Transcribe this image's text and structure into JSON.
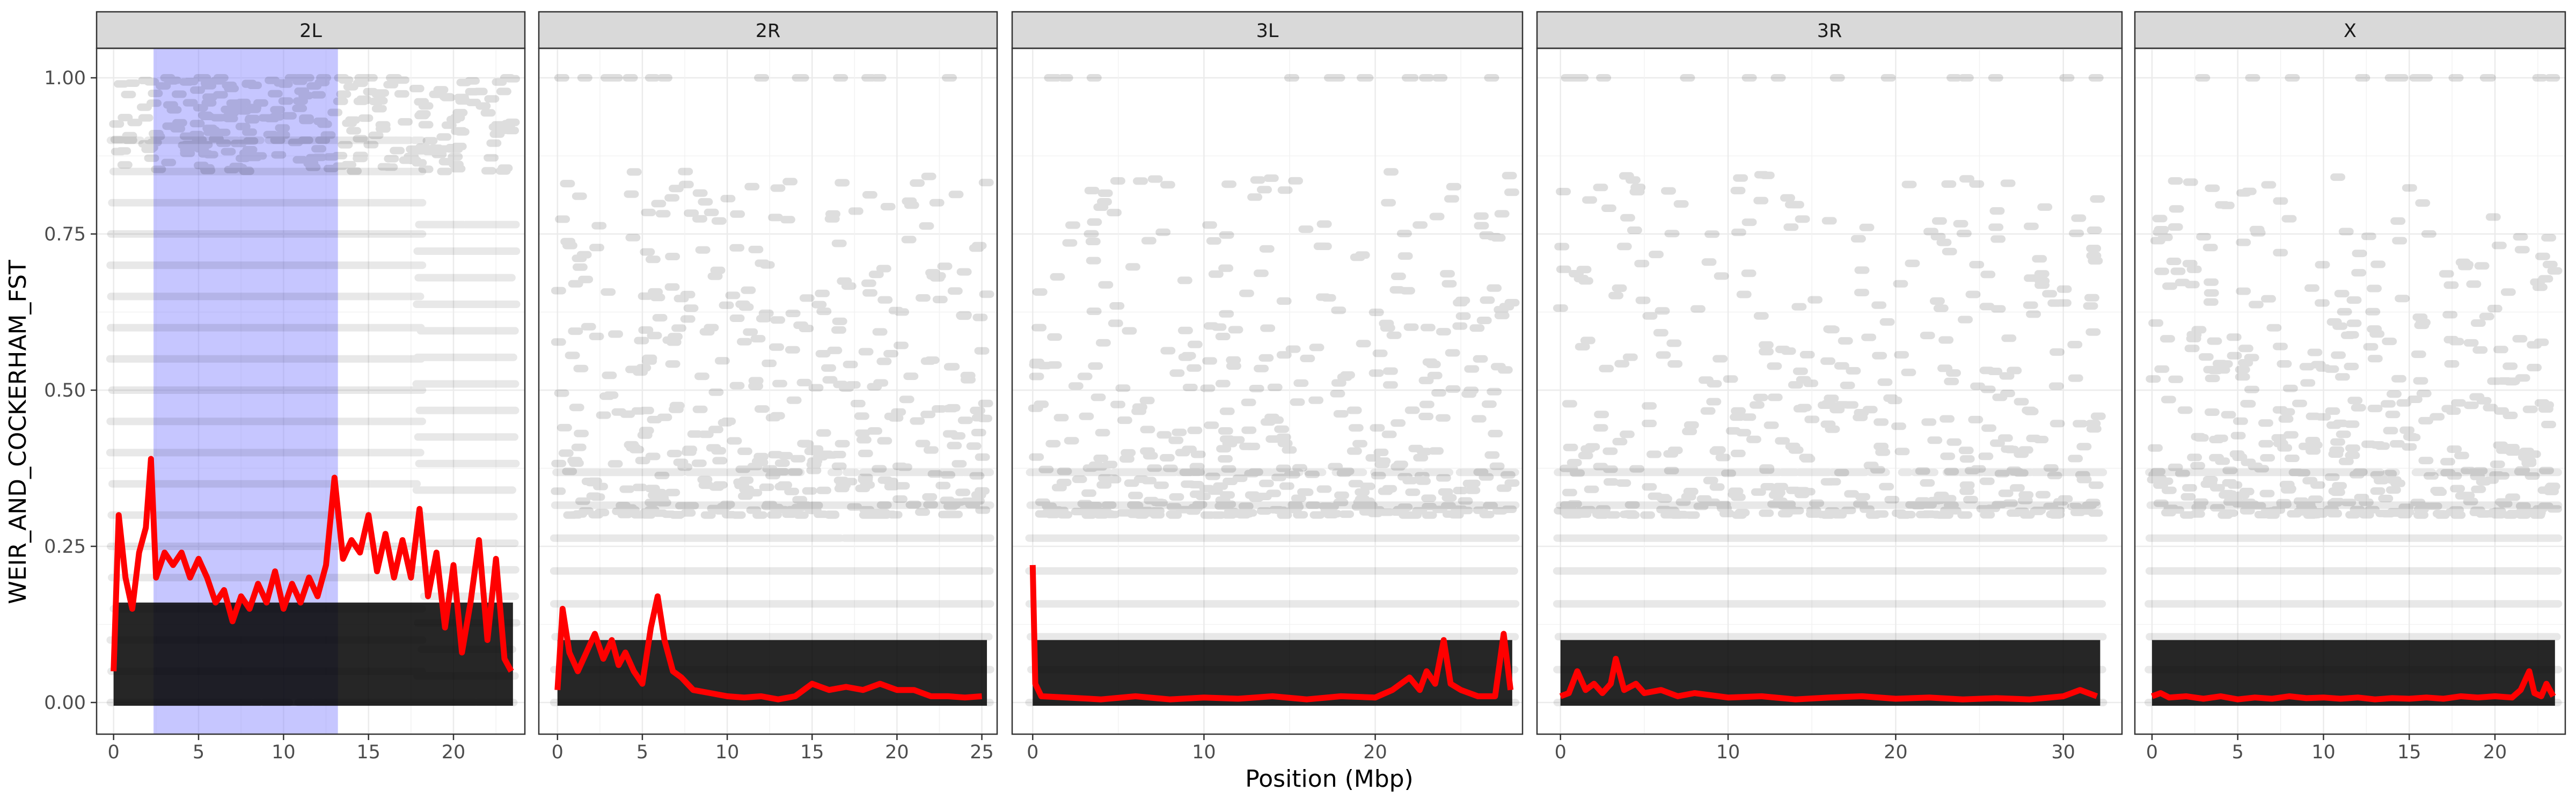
{
  "chart_data": {
    "type": "scatter",
    "xlabel": "Position (Mbp)",
    "ylabel": "WEIR_AND_COCKERHAM_FST",
    "ylim": [
      0,
      1
    ],
    "yticks": [
      "0.00",
      "0.25",
      "0.50",
      "0.75",
      "1.00"
    ],
    "grid": true,
    "legend": "none",
    "colors": {
      "points": "#000000",
      "smoothed_line": "#ff0000",
      "highlight_region": "#8080ff",
      "strip_background": "#d9d9d9",
      "panel_border": "#333333",
      "grid": "#ebebeb"
    },
    "panels": [
      {
        "label": "2L",
        "xlim": [
          -1,
          24.2
        ],
        "xticks": [
          "0",
          "5",
          "10",
          "15",
          "20"
        ],
        "xtick_values": [
          0,
          5,
          10,
          15,
          20
        ],
        "point_max": 23.5,
        "highlight": [
          2.35,
          13.2
        ],
        "line": [
          [
            0,
            0.05
          ],
          [
            0.3,
            0.3
          ],
          [
            0.7,
            0.2
          ],
          [
            1.1,
            0.15
          ],
          [
            1.5,
            0.24
          ],
          [
            1.9,
            0.28
          ],
          [
            2.2,
            0.39
          ],
          [
            2.5,
            0.2
          ],
          [
            3,
            0.24
          ],
          [
            3.5,
            0.22
          ],
          [
            4,
            0.24
          ],
          [
            4.5,
            0.2
          ],
          [
            5,
            0.23
          ],
          [
            5.5,
            0.2
          ],
          [
            6,
            0.16
          ],
          [
            6.5,
            0.18
          ],
          [
            7,
            0.13
          ],
          [
            7.5,
            0.17
          ],
          [
            8,
            0.15
          ],
          [
            8.5,
            0.19
          ],
          [
            9,
            0.16
          ],
          [
            9.5,
            0.21
          ],
          [
            10,
            0.15
          ],
          [
            10.5,
            0.19
          ],
          [
            11,
            0.16
          ],
          [
            11.5,
            0.2
          ],
          [
            12,
            0.17
          ],
          [
            12.5,
            0.22
          ],
          [
            13,
            0.36
          ],
          [
            13.5,
            0.23
          ],
          [
            14,
            0.26
          ],
          [
            14.5,
            0.24
          ],
          [
            15,
            0.3
          ],
          [
            15.5,
            0.21
          ],
          [
            16,
            0.27
          ],
          [
            16.5,
            0.2
          ],
          [
            17,
            0.26
          ],
          [
            17.5,
            0.2
          ],
          [
            18,
            0.31
          ],
          [
            18.5,
            0.17
          ],
          [
            19,
            0.24
          ],
          [
            19.5,
            0.12
          ],
          [
            20,
            0.22
          ],
          [
            20.5,
            0.08
          ],
          [
            21,
            0.16
          ],
          [
            21.5,
            0.26
          ],
          [
            22,
            0.1
          ],
          [
            22.5,
            0.23
          ],
          [
            23,
            0.07
          ],
          [
            23.4,
            0.05
          ]
        ]
      },
      {
        "label": "2R",
        "xlim": [
          -1.1,
          25.9
        ],
        "xticks": [
          "0",
          "5",
          "10",
          "15",
          "20",
          "25"
        ],
        "xtick_values": [
          0,
          5,
          10,
          15,
          20,
          25
        ],
        "point_max": 25.3,
        "highlight": null,
        "line": [
          [
            0,
            0.02
          ],
          [
            0.3,
            0.15
          ],
          [
            0.7,
            0.08
          ],
          [
            1.2,
            0.05
          ],
          [
            1.7,
            0.08
          ],
          [
            2.2,
            0.11
          ],
          [
            2.7,
            0.07
          ],
          [
            3.2,
            0.1
          ],
          [
            3.6,
            0.06
          ],
          [
            4,
            0.08
          ],
          [
            4.5,
            0.05
          ],
          [
            5,
            0.03
          ],
          [
            5.5,
            0.12
          ],
          [
            5.9,
            0.17
          ],
          [
            6.3,
            0.1
          ],
          [
            6.8,
            0.05
          ],
          [
            7.3,
            0.04
          ],
          [
            8,
            0.02
          ],
          [
            9,
            0.015
          ],
          [
            10,
            0.01
          ],
          [
            11,
            0.008
          ],
          [
            12,
            0.01
          ],
          [
            13,
            0.005
          ],
          [
            14,
            0.01
          ],
          [
            15,
            0.03
          ],
          [
            16,
            0.02
          ],
          [
            17,
            0.025
          ],
          [
            18,
            0.02
          ],
          [
            19,
            0.03
          ],
          [
            20,
            0.02
          ],
          [
            21,
            0.02
          ],
          [
            22,
            0.01
          ],
          [
            23,
            0.01
          ],
          [
            24,
            0.008
          ],
          [
            25,
            0.01
          ]
        ]
      },
      {
        "label": "3L",
        "xlim": [
          -1.2,
          28.6
        ],
        "xticks": [
          "0",
          "10",
          "20"
        ],
        "xtick_values": [
          0,
          10,
          20
        ],
        "point_max": 28,
        "highlight": null,
        "line": [
          [
            0,
            0.22
          ],
          [
            0.15,
            0.03
          ],
          [
            0.5,
            0.01
          ],
          [
            2,
            0.008
          ],
          [
            4,
            0.005
          ],
          [
            6,
            0.01
          ],
          [
            8,
            0.005
          ],
          [
            10,
            0.008
          ],
          [
            12,
            0.006
          ],
          [
            14,
            0.01
          ],
          [
            16,
            0.005
          ],
          [
            18,
            0.01
          ],
          [
            20,
            0.008
          ],
          [
            21,
            0.02
          ],
          [
            22,
            0.04
          ],
          [
            22.6,
            0.02
          ],
          [
            23,
            0.05
          ],
          [
            23.5,
            0.03
          ],
          [
            24,
            0.1
          ],
          [
            24.4,
            0.03
          ],
          [
            25,
            0.02
          ],
          [
            26,
            0.01
          ],
          [
            27,
            0.01
          ],
          [
            27.5,
            0.11
          ],
          [
            27.9,
            0.02
          ]
        ]
      },
      {
        "label": "3R",
        "xlim": [
          -1.4,
          33.5
        ],
        "xticks": [
          "0",
          "10",
          "20",
          "30"
        ],
        "xtick_values": [
          0,
          10,
          20,
          30
        ],
        "point_max": 32.2,
        "highlight": null,
        "line": [
          [
            0,
            0.01
          ],
          [
            0.5,
            0.015
          ],
          [
            1,
            0.05
          ],
          [
            1.5,
            0.02
          ],
          [
            2,
            0.03
          ],
          [
            2.5,
            0.015
          ],
          [
            3,
            0.03
          ],
          [
            3.3,
            0.07
          ],
          [
            3.8,
            0.02
          ],
          [
            4.5,
            0.03
          ],
          [
            5,
            0.015
          ],
          [
            6,
            0.02
          ],
          [
            7,
            0.01
          ],
          [
            8,
            0.015
          ],
          [
            10,
            0.008
          ],
          [
            12,
            0.01
          ],
          [
            14,
            0.005
          ],
          [
            16,
            0.008
          ],
          [
            18,
            0.01
          ],
          [
            20,
            0.006
          ],
          [
            22,
            0.008
          ],
          [
            24,
            0.005
          ],
          [
            26,
            0.007
          ],
          [
            28,
            0.005
          ],
          [
            30,
            0.01
          ],
          [
            31,
            0.02
          ],
          [
            32,
            0.01
          ]
        ]
      },
      {
        "label": "X",
        "xlim": [
          -1,
          24.1
        ],
        "xticks": [
          "0",
          "5",
          "10",
          "15",
          "20"
        ],
        "xtick_values": [
          0,
          5,
          10,
          15,
          20
        ],
        "point_max": 23.5,
        "highlight": null,
        "line": [
          [
            0,
            0.01
          ],
          [
            0.5,
            0.015
          ],
          [
            1,
            0.008
          ],
          [
            2,
            0.01
          ],
          [
            3,
            0.006
          ],
          [
            4,
            0.01
          ],
          [
            5,
            0.005
          ],
          [
            6,
            0.008
          ],
          [
            7,
            0.006
          ],
          [
            8,
            0.01
          ],
          [
            9,
            0.007
          ],
          [
            10,
            0.008
          ],
          [
            11,
            0.006
          ],
          [
            12,
            0.008
          ],
          [
            13,
            0.005
          ],
          [
            14,
            0.007
          ],
          [
            15,
            0.006
          ],
          [
            16,
            0.008
          ],
          [
            17,
            0.006
          ],
          [
            18,
            0.01
          ],
          [
            19,
            0.008
          ],
          [
            20,
            0.01
          ],
          [
            21,
            0.008
          ],
          [
            21.5,
            0.02
          ],
          [
            22,
            0.05
          ],
          [
            22.3,
            0.015
          ],
          [
            22.7,
            0.01
          ],
          [
            23,
            0.03
          ],
          [
            23.4,
            0.01
          ]
        ]
      }
    ]
  }
}
